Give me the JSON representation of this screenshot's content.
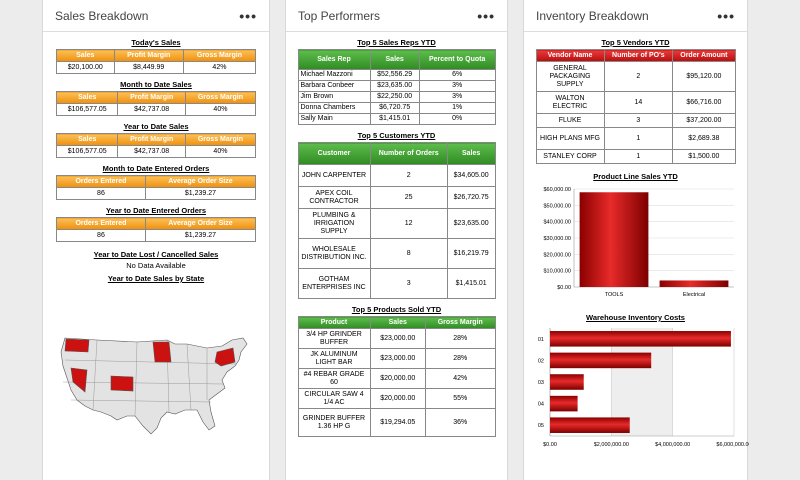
{
  "sales": {
    "title": "Sales Breakdown",
    "menu": "•••",
    "today": {
      "title": "Today's Sales",
      "headers": [
        "Sales",
        "Profit Margin",
        "Gross Margin"
      ],
      "row": [
        "$20,100.00",
        "$8,449.99",
        "42%"
      ]
    },
    "mtd": {
      "title": "Month to Date Sales",
      "headers": [
        "Sales",
        "Profit Margin",
        "Gross Margin"
      ],
      "row": [
        "$106,577.05",
        "$42,737.08",
        "40%"
      ]
    },
    "ytd": {
      "title": "Year to Date Sales",
      "headers": [
        "Sales",
        "Profit Margin",
        "Gross Margin"
      ],
      "row": [
        "$106,577.05",
        "$42,737.08",
        "40%"
      ]
    },
    "mtd_orders": {
      "title": "Month to Date Entered Orders",
      "headers": [
        "Orders Entered",
        "Average Order Size"
      ],
      "row": [
        "86",
        "$1,239.27"
      ]
    },
    "ytd_orders": {
      "title": "Year to Date Entered Orders",
      "headers": [
        "Orders Entered",
        "Average Order Size"
      ],
      "row": [
        "86",
        "$1,239.27"
      ]
    },
    "lost": {
      "title": "Year to Date Lost / Cancelled Sales",
      "text": "No Data Available"
    },
    "by_state": {
      "title": "Year to Date Sales by State",
      "highlighted": [
        "WA",
        "NV",
        "CO",
        "MN",
        "NY"
      ],
      "highlight_color": "#cc1111"
    }
  },
  "performers": {
    "title": "Top Performers",
    "menu": "•••",
    "reps": {
      "title": "Top 5 Sales Reps YTD",
      "headers": [
        "Sales Rep",
        "Sales",
        "Percent to Quota"
      ],
      "rows": [
        [
          "Michael Mazzoni",
          "$52,556.29",
          "6%"
        ],
        [
          "Barbara Conbeer",
          "$23,635.00",
          "3%"
        ],
        [
          "Jim Brown",
          "$22,250.00",
          "3%"
        ],
        [
          "Donna Chambers",
          "$6,720.75",
          "1%"
        ],
        [
          "Sally Main",
          "$1,415.01",
          "0%"
        ]
      ]
    },
    "customers": {
      "title": "Top 5 Customers YTD",
      "headers": [
        "Customer",
        "Number of Orders",
        "Sales"
      ],
      "rows": [
        [
          "JOHN CARPENTER",
          "2",
          "$34,605.00"
        ],
        [
          "APEX COIL CONTRACTOR",
          "25",
          "$26,720.75"
        ],
        [
          "PLUMBING & IRRIGATION SUPPLY",
          "12",
          "$23,635.00"
        ],
        [
          "WHOLESALE DISTRIBUTION INC.",
          "8",
          "$16,219.79"
        ],
        [
          "GOTHAM ENTERPRISES INC",
          "3",
          "$1,415.01"
        ]
      ]
    },
    "products": {
      "title": "Top 5 Products Sold YTD",
      "headers": [
        "Product",
        "Sales",
        "Gross Margin"
      ],
      "rows": [
        [
          "3/4 HP GRINDER BUFFER",
          "$23,000.00",
          "28%"
        ],
        [
          "JK ALUMINUM LIGHT BAR",
          "$23,000.00",
          "28%"
        ],
        [
          "#4 REBAR GRADE 60",
          "$20,000.00",
          "42%"
        ],
        [
          "CIRCULAR SAW 4 1/4 AC",
          "$20,000.00",
          "55%"
        ],
        [
          "GRINDER BUFFER 1.36 HP G",
          "$19,294.05",
          "36%"
        ]
      ]
    }
  },
  "inventory": {
    "title": "Inventory Breakdown",
    "menu": "•••",
    "vendors": {
      "title": "Top 5 Vendors YTD",
      "headers": [
        "Vendor Name",
        "Number of PO's",
        "Order Amount"
      ],
      "rows": [
        [
          "GENERAL PACKAGING SUPPLY",
          "2",
          "$95,120.00"
        ],
        [
          "WALTON ELECTRIC",
          "14",
          "$66,716.00"
        ],
        [
          "FLUKE",
          "3",
          "$37,200.00"
        ],
        [
          "HIGH PLANS MFG",
          "1",
          "$2,689.38"
        ],
        [
          "STANLEY CORP",
          "1",
          "$1,500.00"
        ]
      ]
    }
  },
  "chart_data": [
    {
      "type": "bar",
      "title": "Product Line Sales YTD",
      "categories": [
        "TOOLS",
        "Electrical"
      ],
      "values": [
        58000,
        4000
      ],
      "ylim": [
        0,
        60000
      ],
      "yticks": [
        0,
        10000,
        20000,
        30000,
        40000,
        50000,
        60000
      ],
      "ytick_labels": [
        "$0.00",
        "$10,000.00",
        "$20,000.00",
        "$30,000.00",
        "$40,000.00",
        "$50,000.00",
        "$60,000.00"
      ],
      "xlabel": "",
      "ylabel": "",
      "color": "#c40f0f"
    },
    {
      "type": "bar",
      "orientation": "horizontal",
      "title": "Warehouse Inventory Costs",
      "categories": [
        "01",
        "02",
        "03",
        "04",
        "05"
      ],
      "values": [
        5900000,
        3300000,
        1100000,
        900000,
        2600000
      ],
      "xlim": [
        0,
        6000000
      ],
      "xticks": [
        0,
        2000000,
        4000000,
        6000000
      ],
      "xtick_labels": [
        "$0.00",
        "$2,000,000.00",
        "$4,000,000.00",
        "$6,000,000.00"
      ],
      "xlabel": "",
      "ylabel": "",
      "color": "#c40f0f"
    }
  ]
}
